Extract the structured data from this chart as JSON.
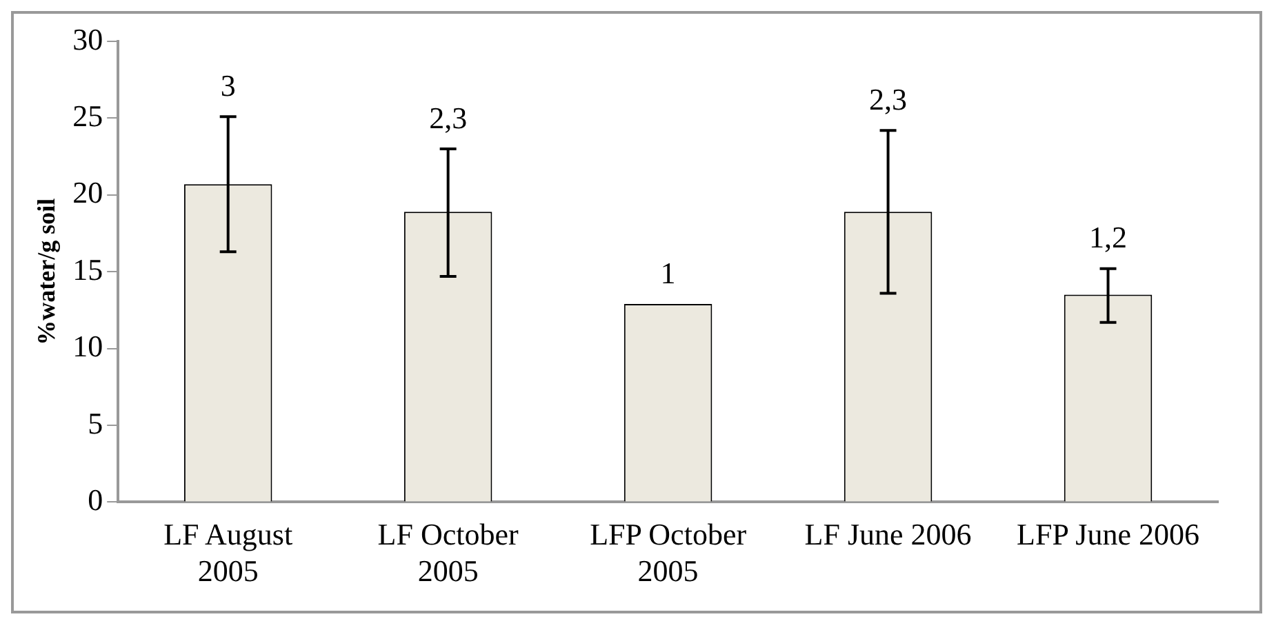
{
  "chart_data": {
    "type": "bar",
    "ylabel": "%water/g soil",
    "categories": [
      "LF August 2005",
      "LF October 2005",
      "LFP October 2005",
      "LF June 2006",
      "LFP June 2006"
    ],
    "values": [
      20.7,
      18.9,
      12.9,
      18.9,
      13.5
    ],
    "errors": [
      [
        16.3,
        25.1
      ],
      [
        14.7,
        23.0
      ],
      null,
      [
        13.6,
        24.2
      ],
      [
        11.7,
        15.2
      ]
    ],
    "color": "#ece9df",
    "annotations": [
      "3",
      "2,3",
      "1",
      "2,3",
      "1,2"
    ],
    "ylim": [
      0,
      30
    ],
    "yticks": [
      0,
      5,
      10,
      15,
      20,
      25,
      30
    ],
    "grid": false,
    "legend": false
  }
}
